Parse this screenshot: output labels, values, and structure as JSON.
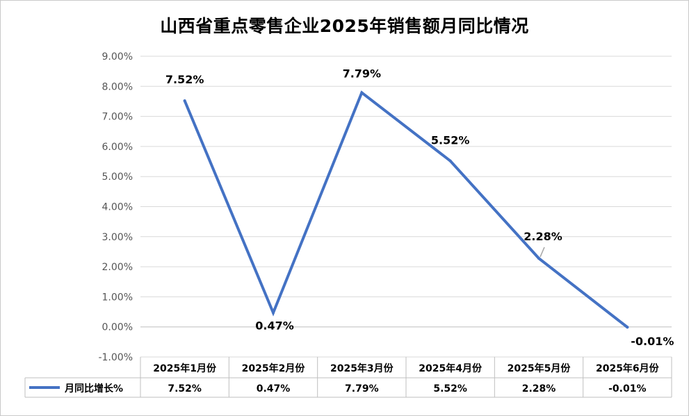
{
  "chart_data": {
    "type": "line",
    "title": "山西省重点零售企业2025年销售额月同比情况",
    "categories": [
      "2025年1月份",
      "2025年2月份",
      "2025年3月份",
      "2025年4月份",
      "2025年5月份",
      "2025年6月份"
    ],
    "series": [
      {
        "name": "月同比增长%",
        "values": [
          7.52,
          0.47,
          7.79,
          5.52,
          2.28,
          -0.01
        ],
        "labels": [
          "7.52%",
          "0.47%",
          "7.79%",
          "5.52%",
          "2.28%",
          "-0.01%"
        ],
        "color": "#4472C4"
      }
    ],
    "ylim": [
      -1,
      9
    ],
    "yticks": [
      "-1.00%",
      "0.00%",
      "1.00%",
      "2.00%",
      "3.00%",
      "4.00%",
      "5.00%",
      "6.00%",
      "7.00%",
      "8.00%",
      "9.00%"
    ],
    "grid": true,
    "data_table": true,
    "xlabel": "",
    "ylabel": ""
  }
}
